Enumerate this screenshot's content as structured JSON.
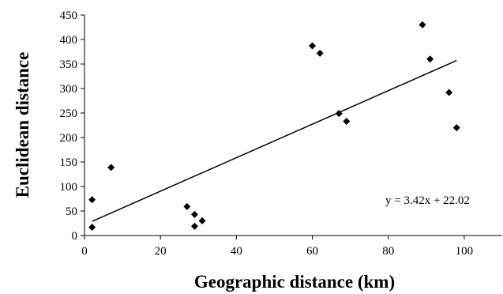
{
  "chart_data": {
    "type": "scatter",
    "xlabel": "Geographic distance (km)",
    "ylabel": "Euclidean distance",
    "xlim": [
      0,
      110
    ],
    "ylim": [
      0,
      450
    ],
    "xticks": [
      0,
      20,
      40,
      60,
      80,
      100
    ],
    "yticks": [
      0,
      50,
      100,
      150,
      200,
      250,
      300,
      350,
      400,
      450
    ],
    "grid": false,
    "legend": "none",
    "marker": "diamond",
    "marker_color": "#000000",
    "points": [
      {
        "x": 2,
        "y": 73
      },
      {
        "x": 2,
        "y": 17
      },
      {
        "x": 7,
        "y": 139
      },
      {
        "x": 27,
        "y": 59
      },
      {
        "x": 29,
        "y": 43
      },
      {
        "x": 29,
        "y": 19
      },
      {
        "x": 31,
        "y": 30
      },
      {
        "x": 60,
        "y": 387
      },
      {
        "x": 62,
        "y": 372
      },
      {
        "x": 67,
        "y": 249
      },
      {
        "x": 69,
        "y": 233
      },
      {
        "x": 89,
        "y": 430
      },
      {
        "x": 91,
        "y": 360
      },
      {
        "x": 96,
        "y": 292
      },
      {
        "x": 98,
        "y": 220
      }
    ],
    "trendline": {
      "slope": 3.42,
      "intercept": 22.02,
      "x_range": [
        2,
        98
      ]
    },
    "annotation": "y = 3.42x + 22.02"
  }
}
